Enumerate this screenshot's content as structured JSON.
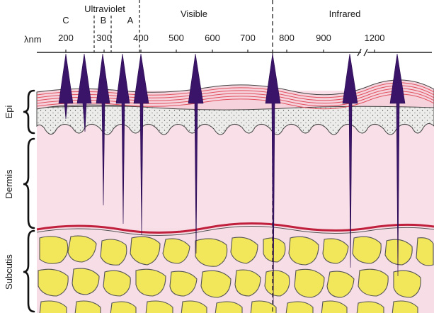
{
  "figure": {
    "spectrum": {
      "unit_label": "λnm",
      "ticks": [
        "200",
        "300",
        "400",
        "500",
        "600",
        "700",
        "800",
        "900",
        "1200"
      ],
      "regions": {
        "uv": "Ultraviolet",
        "visible": "Visible",
        "infrared": "Infrared"
      },
      "uv_bands": {
        "c": "C",
        "b": "B",
        "a": "A"
      }
    },
    "layers": {
      "epidermis": "Epi",
      "dermis": "Dermis",
      "subcutis": "Subcutis"
    },
    "colors": {
      "arrow": "#3a1468",
      "dermis": "#f8dfe8",
      "epidermis": "#f6d2dc",
      "epidermis_lines": "#e0505e",
      "basal": "#ececea",
      "fat": "#f2e65a",
      "fat_bg": "#f6dde6",
      "vessel": "#c0203c"
    },
    "penetration": [
      {
        "wavelength_nm": 200,
        "depth_layer": "epidermis",
        "depth_fraction": 0.15
      },
      {
        "wavelength_nm": 250,
        "depth_layer": "epidermis",
        "depth_fraction": 0.85
      },
      {
        "wavelength_nm": 300,
        "depth_layer": "dermis",
        "depth_fraction": 0.48
      },
      {
        "wavelength_nm": 350,
        "depth_layer": "dermis",
        "depth_fraction": 0.95
      },
      {
        "wavelength_nm": 400,
        "depth_layer": "dermis",
        "depth_fraction": 1.0
      },
      {
        "wavelength_nm": 550,
        "depth_layer": "subcutis",
        "depth_fraction": 0.27
      },
      {
        "wavelength_nm": 770,
        "depth_layer": "subcutis",
        "depth_fraction": 0.9
      },
      {
        "wavelength_nm": 1000,
        "depth_layer": "subcutis",
        "depth_fraction": 0.45
      },
      {
        "wavelength_nm": 1300,
        "depth_layer": "subcutis",
        "depth_fraction": 0.55
      }
    ]
  }
}
